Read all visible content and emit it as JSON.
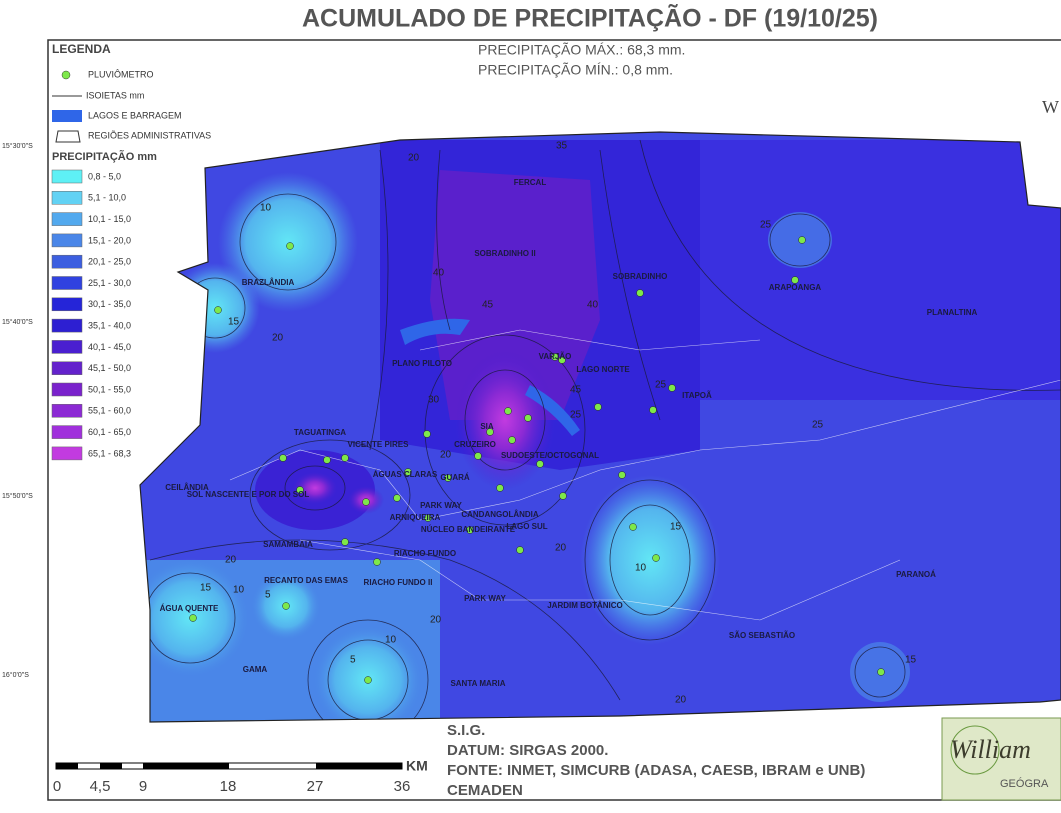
{
  "title": "ACUMULADO DE PRECIPITAÇÃO - DF (19/10/25)",
  "stats": [
    "PRECIPITAÇÃO MÁX.: 68,3 mm.",
    "PRECIPITAÇÃO MÍN.: 0,8 mm."
  ],
  "legend": {
    "title": "LEGENDA",
    "items": [
      "PLUVIÔMETRO",
      "ISOIETAS mm",
      "LAGOS E BARRAGEM",
      "REGIÕES ADMINISTRATIVAS"
    ],
    "precip_title": "PRECIPITAÇÃO mm",
    "classes": [
      {
        "label": "0,8 - 5,0",
        "color": "#5ef0f5"
      },
      {
        "label": "5,1 - 10,0",
        "color": "#62d2f4"
      },
      {
        "label": "10,1 - 15,0",
        "color": "#52a9ee"
      },
      {
        "label": "15,1 - 20,0",
        "color": "#4a86e8"
      },
      {
        "label": "20,1 - 25,0",
        "color": "#3c5fe0"
      },
      {
        "label": "25,1 - 30,0",
        "color": "#3042e0"
      },
      {
        "label": "30,1 - 35,0",
        "color": "#2525d8"
      },
      {
        "label": "35,1 - 40,0",
        "color": "#2d1fd2"
      },
      {
        "label": "40,1 - 45,0",
        "color": "#4a1fd0"
      },
      {
        "label": "45,1 - 50,0",
        "color": "#6422cc"
      },
      {
        "label": "50,1 - 55,0",
        "color": "#7a22cc"
      },
      {
        "label": "55,1 - 60,0",
        "color": "#8c2ad4"
      },
      {
        "label": "60,1 - 65,0",
        "color": "#a030dc"
      },
      {
        "label": "65,1 - 68,3",
        "color": "#c23be0"
      }
    ]
  },
  "coordinates": [
    "15°30'0\"S",
    "15°40'0\"S",
    "15°50'0\"S",
    "16°0'0\"S"
  ],
  "compass": "W",
  "regions": [
    "FERCAL",
    "SOBRADINHO II",
    "SOBRADINHO",
    "ARAPOANGA",
    "PLANALTINA",
    "BRAZLÂNDIA",
    "PLANO PILOTO",
    "VARJÃO",
    "LAGO NORTE",
    "ITAPOÃ",
    "TAGUATINGA",
    "VICENTE PIRES",
    "SIA",
    "CRUZEIRO",
    "SUDOESTE/OCTOGONAL",
    "CEILÂNDIA",
    "SOL NASCENTE E POR DO SOL",
    "ÁGUAS CLARAS",
    "GUARÁ",
    "ARNIQUEIRA",
    "PARK WAY",
    "CANDANGOLÂNDIA",
    "NÚCLEO BANDEIRANTE",
    "LAGO SUL",
    "SAMAMBAIA",
    "RIACHO FUNDO",
    "RECANTO DAS EMAS",
    "RIACHO FUNDO II",
    "PARK WAY",
    "JARDIM BOTÂNICO",
    "PARANOÁ",
    "SÃO SEBASTIÃO",
    "ÁGUA QUENTE",
    "GAMA",
    "SANTA MARIA"
  ],
  "isolines": [
    "10",
    "15",
    "20",
    "20",
    "35",
    "30",
    "25",
    "20",
    "45",
    "40",
    "40",
    "45",
    "25",
    "25",
    "25",
    "20",
    "15",
    "10",
    "10",
    "5",
    "15",
    "20",
    "5",
    "10",
    "20",
    "20",
    "15"
  ],
  "scale": {
    "labels": [
      "0",
      "4,5",
      "9",
      "18",
      "27",
      "36"
    ],
    "unit": "KM"
  },
  "footer": [
    "S.I.G.",
    "DATUM: SIRGAS 2000.",
    "FONTE: INMET, SIMCURB (ADASA, CAESB, IBRAM e UNB)",
    "CEMADEN"
  ],
  "logo": [
    "William",
    "GEÓGRA"
  ]
}
